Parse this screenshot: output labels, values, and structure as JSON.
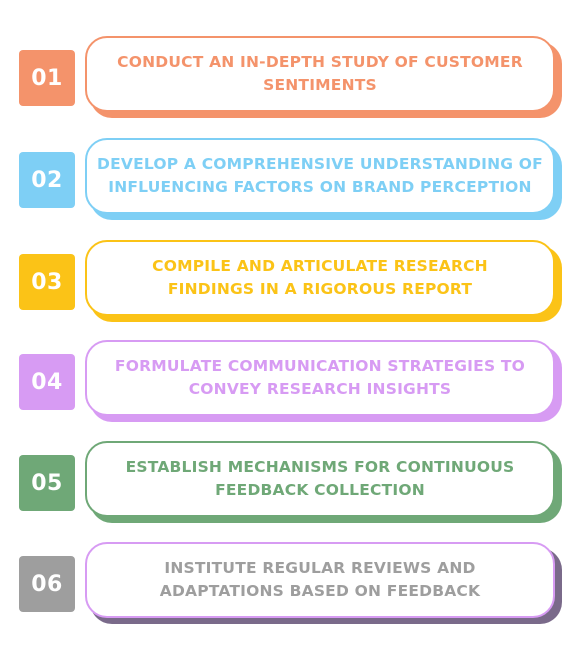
{
  "steps": [
    {
      "number": "01",
      "text": "CONDUCT AN IN-DEPTH STUDY OF CUSTOMER SENTIMENTS",
      "color": "#F4936B"
    },
    {
      "number": "02",
      "text": "DEVELOP A COMPREHENSIVE UNDERSTANDING OF INFLUENCING FACTORS ON BRAND PERCEPTION",
      "color": "#7ECFF5"
    },
    {
      "number": "03",
      "text": "COMPILE AND ARTICULATE RESEARCH FINDINGS IN A RIGOROUS REPORT",
      "color": "#FBC317"
    },
    {
      "number": "04",
      "text": "FORMULATE COMMUNICATION STRATEGIES TO CONVEY RESEARCH INSIGHTS",
      "color": "#D79BF3"
    },
    {
      "number": "05",
      "text": "ESTABLISH MECHANISMS FOR CONTINUOUS FEEDBACK COLLECTION",
      "color": "#6FA877"
    },
    {
      "number": "06",
      "text": "INSTITUTE REGULAR REVIEWS AND ADAPTATIONS BASED ON FEEDBACK",
      "color": "#9E9E9E",
      "border_color": "#D79BF3",
      "shadow_color": "#7A6A8A"
    }
  ]
}
